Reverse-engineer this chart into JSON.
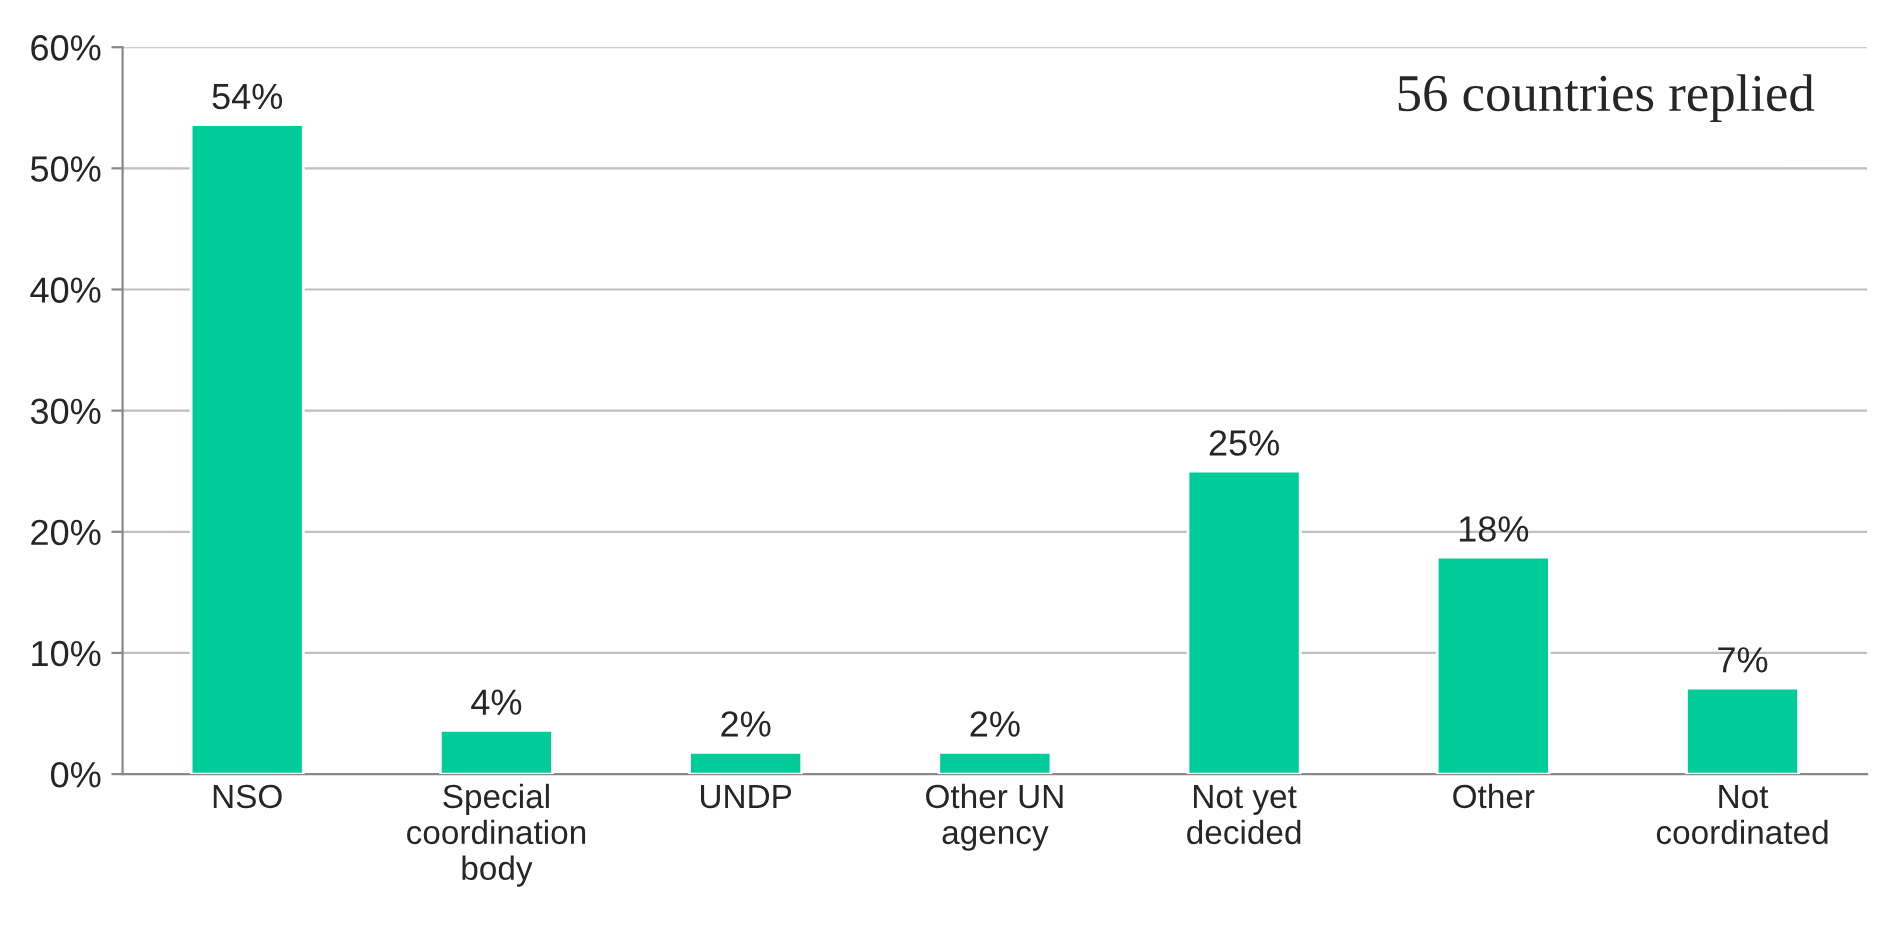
{
  "chart_data": {
    "type": "bar",
    "categories": [
      "NSO",
      "Special\ncoordination\nbody",
      "UNDP",
      "Other UN\nagency",
      "Not yet\ndecided",
      "Other",
      "Not\ncoordinated"
    ],
    "values": [
      53.6,
      3.6,
      1.8,
      1.8,
      25,
      17.9,
      7.1
    ],
    "value_labels": [
      "54%",
      "4%",
      "2%",
      "2%",
      "25%",
      "18%",
      "7%"
    ],
    "color": "#00cc99",
    "ylim": [
      0,
      60
    ],
    "yticks": [
      {
        "value": 0,
        "label": "0%"
      },
      {
        "value": 10,
        "label": "10%"
      },
      {
        "value": 20,
        "label": "20%"
      },
      {
        "value": 30,
        "label": "30%"
      },
      {
        "value": 40,
        "label": "40%"
      },
      {
        "value": 50,
        "label": "50%"
      },
      {
        "value": 60,
        "label": "60%"
      }
    ],
    "grid": "y",
    "annotations": [
      "56 countries replied"
    ]
  }
}
